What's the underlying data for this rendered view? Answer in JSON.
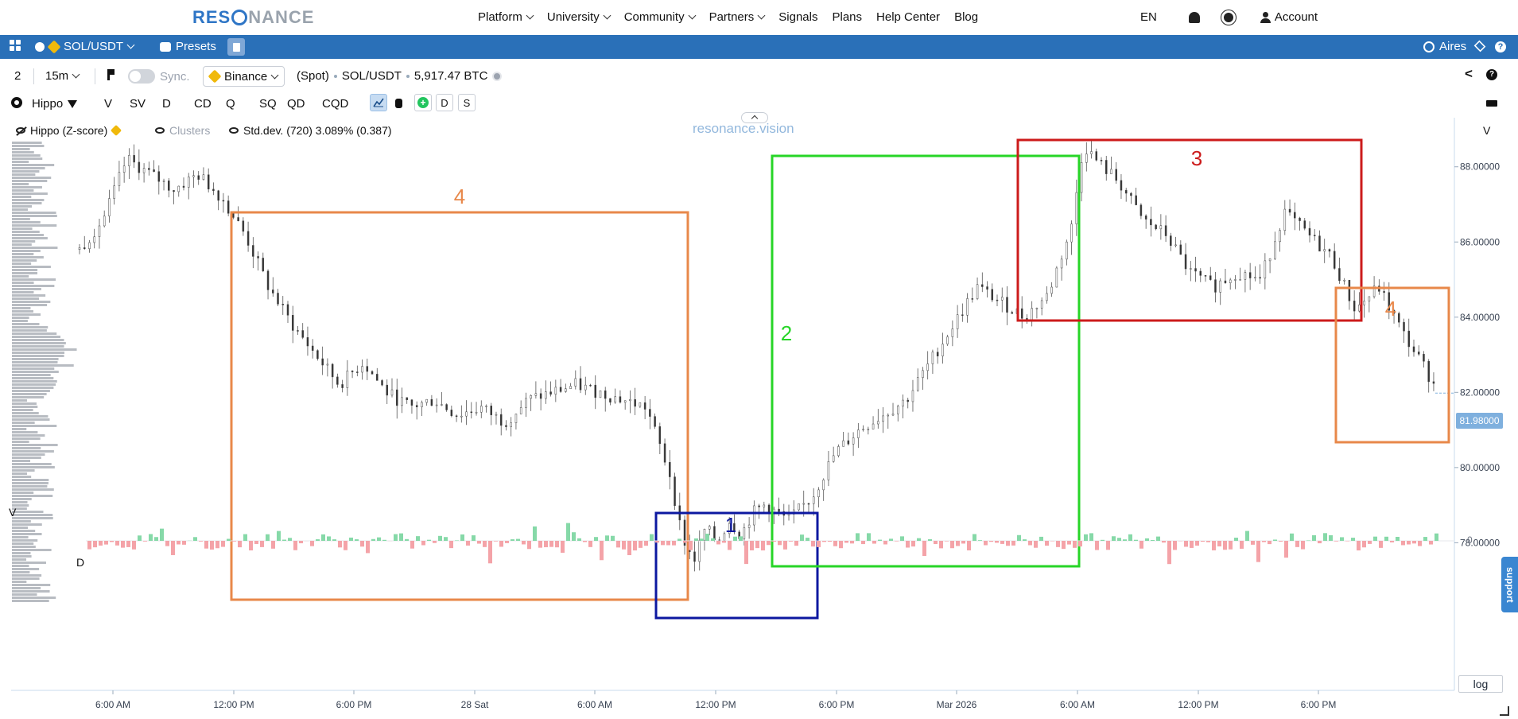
{
  "nav": {
    "logo": "RES",
    "logo_rest": "NANCE",
    "menu": [
      "Platform",
      "University",
      "Community",
      "Partners",
      "Signals",
      "Plans",
      "Help Center",
      "Blog"
    ],
    "menu_has_chevron": [
      true,
      true,
      true,
      true,
      false,
      false,
      false,
      false
    ],
    "lang": "EN",
    "account": "Account"
  },
  "toolbar": {
    "pair": "SOL/USDT",
    "presets": "Presets",
    "user": "Aires"
  },
  "row2": {
    "layout_count": "2",
    "interval": "15m",
    "sync": "Sync.",
    "exchange": "Binance",
    "market": "(Spot)",
    "pair": "SOL/USDT",
    "volume": "5,917.47 BTC"
  },
  "row3": {
    "indicator": "Hippo",
    "buttons": [
      "V",
      "SV",
      "D",
      "CD",
      "Q",
      "SQ",
      "QD",
      "CQD"
    ],
    "toggle_d": "D",
    "toggle_s": "S"
  },
  "chart": {
    "watermark": "resonance.vision",
    "legend_hippo": "Hippo (Z-score)",
    "legend_clusters": "Clusters",
    "legend_std": "Std.dev. (720) 3.089% (0.387)",
    "v_label_right": "V",
    "v_label_left": "V",
    "d_label": "D",
    "zero_label": "0",
    "last_price": "81.98000",
    "log": "log",
    "support": "support"
  },
  "chart_data": {
    "type": "candlestick",
    "y_ticks": [
      "88.00000",
      "86.00000",
      "84.00000",
      "82.00000",
      "80.00000",
      "78.00000"
    ],
    "x_ticks": [
      "6:00 AM",
      "12:00 PM",
      "6:00 PM",
      "28 Sat",
      "6:00 AM",
      "12:00 PM",
      "6:00 PM",
      "Mar 2026",
      "6:00 AM",
      "12:00 PM",
      "6:00 PM"
    ],
    "ylim": [
      76.4,
      89.2
    ],
    "last_price": 81.98,
    "price_path": [
      [
        0,
        85.8
      ],
      [
        2,
        86.6
      ],
      [
        4,
        88.2
      ],
      [
        6,
        87.8
      ],
      [
        8,
        87.4
      ],
      [
        10,
        87.8
      ],
      [
        12,
        87.2
      ],
      [
        14,
        86.2
      ],
      [
        16,
        84.8
      ],
      [
        18,
        83.8
      ],
      [
        20,
        83.0
      ],
      [
        22,
        82.2
      ],
      [
        24,
        82.8
      ],
      [
        26,
        82.0
      ],
      [
        28,
        81.6
      ],
      [
        30,
        81.8
      ],
      [
        32,
        81.4
      ],
      [
        34,
        81.6
      ],
      [
        36,
        81.2
      ],
      [
        38,
        81.8
      ],
      [
        40,
        82.0
      ],
      [
        42,
        82.2
      ],
      [
        44,
        82.0
      ],
      [
        46,
        81.8
      ],
      [
        48,
        81.6
      ],
      [
        50,
        79.8
      ],
      [
        51,
        78.2
      ],
      [
        52,
        77.5
      ],
      [
        53,
        78.4
      ],
      [
        54,
        78.0
      ],
      [
        55,
        78.6
      ],
      [
        56,
        78.2
      ],
      [
        57,
        78.8
      ],
      [
        58,
        79.0
      ],
      [
        60,
        78.6
      ],
      [
        62,
        79.2
      ],
      [
        64,
        80.4
      ],
      [
        66,
        81.0
      ],
      [
        68,
        81.4
      ],
      [
        70,
        81.8
      ],
      [
        72,
        82.8
      ],
      [
        74,
        83.8
      ],
      [
        76,
        84.8
      ],
      [
        78,
        84.4
      ],
      [
        80,
        84.0
      ],
      [
        82,
        84.6
      ],
      [
        84,
        86.4
      ],
      [
        85,
        88.6
      ],
      [
        86,
        88.2
      ],
      [
        88,
        87.6
      ],
      [
        90,
        86.6
      ],
      [
        92,
        86.2
      ],
      [
        94,
        85.2
      ],
      [
        96,
        84.8
      ],
      [
        98,
        85.2
      ],
      [
        100,
        85.0
      ],
      [
        102,
        86.8
      ],
      [
        104,
        86.2
      ],
      [
        106,
        85.6
      ],
      [
        108,
        84.2
      ],
      [
        110,
        84.8
      ],
      [
        112,
        83.6
      ],
      [
        114,
        82.6
      ],
      [
        115,
        82.0
      ]
    ],
    "boxes": [
      {
        "label": "4",
        "color": "#e8884a"
      },
      {
        "label": "1",
        "color": "#0d18a0"
      },
      {
        "label": "2",
        "color": "#27d527"
      },
      {
        "label": "3",
        "color": "#cc1b1b"
      },
      {
        "label": "4",
        "color": "#e8884a"
      }
    ]
  },
  "colors": {
    "brand": "#2a70b8",
    "delta_positive": "#86d9a8",
    "delta_negative": "#f4a3a8"
  }
}
